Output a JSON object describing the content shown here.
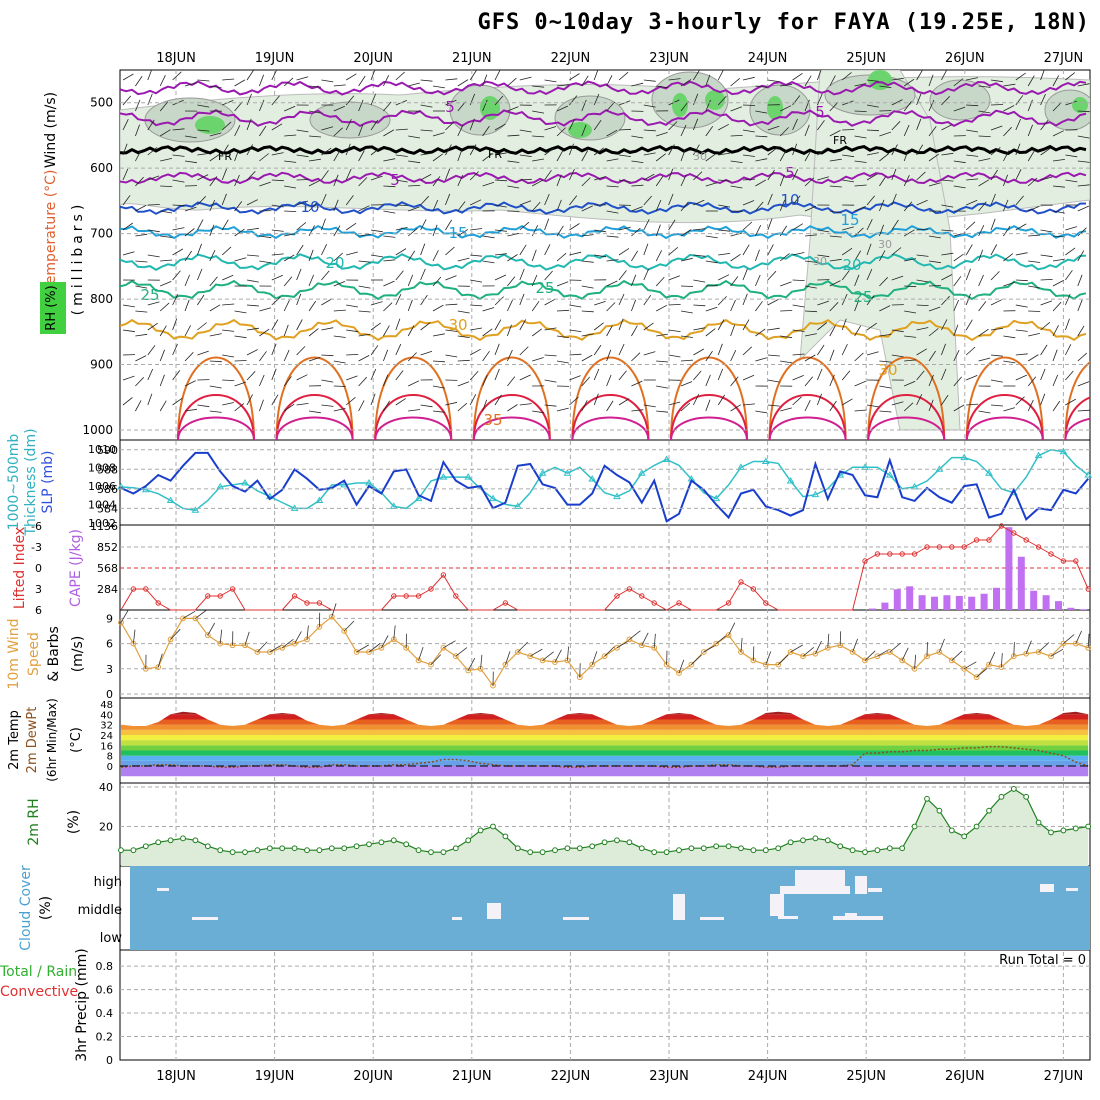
{
  "title": "GFS 0~10day 3-hourly for FAYA (19.25E, 18N)",
  "dates": [
    "18JUN",
    "19JUN",
    "20JUN",
    "21JUN",
    "22JUN",
    "23JUN",
    "24JUN",
    "25JUN",
    "26JUN",
    "27JUN"
  ],
  "colors": {
    "temp_purple": "#9a1ab0",
    "temp_blue": "#2050c8",
    "temp_lightblue": "#20a0d8",
    "temp_teal": "#20b8b0",
    "temp_green": "#20b080",
    "temp_orange": "#e0a020",
    "temp_darkorange": "#e07020",
    "temp_red": "#e02040",
    "slp": "#1a3ecc",
    "thickness": "#30c0c8",
    "li": "#e03030",
    "cape": "#c070f0",
    "wind": "#e0a040",
    "rh": "#208020",
    "cloud_bg": "#6aaed6"
  },
  "panels": {
    "upper": {
      "labels": [
        "Wind (m/s)",
        "Temperature (°C)",
        "RH (%)",
        "(millibars)"
      ],
      "yticks": [
        "500",
        "600",
        "700",
        "800",
        "900",
        "1000"
      ],
      "contour_labels": [
        "5",
        "5",
        "5",
        "5",
        "10",
        "10",
        "15",
        "15",
        "20",
        "20",
        "25",
        "25",
        "25",
        "30",
        "30",
        "35",
        "FR",
        "FR",
        "FR",
        "30",
        "30",
        "30"
      ]
    },
    "slp": {
      "labels": [
        "1000~500mb",
        "Thickness (dm)",
        "SLP (mb)"
      ],
      "left_ticks": [
        "590",
        "588",
        "586",
        "584"
      ],
      "right_ticks": [
        "1010",
        "1008",
        "1006",
        "1004",
        "1002"
      ]
    },
    "cape": {
      "labels": [
        "Lifted Index",
        "CAPE (J/kg)"
      ],
      "left_ticks": [
        "-6",
        "-3",
        "0",
        "3",
        "6"
      ],
      "right_ticks": [
        "1136",
        "852",
        "568",
        "284"
      ]
    },
    "wind": {
      "labels": [
        "10m Wind",
        "Speed",
        "& Barbs",
        "(m/s)"
      ],
      "yticks": [
        "9",
        "6",
        "3",
        "0"
      ]
    },
    "temp2m": {
      "labels": [
        "2m Temp",
        "2m DewPt",
        "(6hr Min/Max)",
        "(°C)"
      ],
      "yticks": [
        "48",
        "40",
        "32",
        "24",
        "16",
        "8",
        "0"
      ]
    },
    "rh2m": {
      "labels": [
        "2m RH",
        "(%)"
      ],
      "yticks": [
        "40",
        "20"
      ]
    },
    "cloud": {
      "labels": [
        "Cloud Cover",
        "(%)"
      ],
      "levels": [
        "high",
        "middle",
        "low"
      ]
    },
    "precip": {
      "labels": [
        "Total / Rain",
        "Convective",
        "3hr Precip (mm)"
      ],
      "yticks": [
        "0.8",
        "0.6",
        "0.4",
        "0.2",
        "0"
      ],
      "run_total": "Run Total = 0"
    }
  },
  "chart_data": [
    {
      "type": "line",
      "title": "SLP (mb) / 1000~500mb Thickness (dm)",
      "x_unit": "3-hourly steps from 17JUN 12Z",
      "series": [
        {
          "name": "SLP (mb)",
          "values": [
            1005.8,
            1005.2,
            1006.0,
            1007.2,
            1006.6,
            1008.2,
            1009.6,
            1009.6,
            1007.6,
            1006.0,
            1005.4,
            1006.6,
            1004.6,
            1005.6,
            1007.8,
            1006.8,
            1005.6,
            1005.8,
            1006.6,
            1004.0,
            1006.0,
            1005.2,
            1007.6,
            1007.8,
            1005.0,
            1004.4,
            1008.6,
            1006.6,
            1005.8,
            1006.0,
            1003.6,
            1004.2,
            1008.2,
            1008.4,
            1006.2,
            1005.8,
            1004.0,
            1004.0,
            1005.2,
            1008.2,
            1007.2,
            1006.4,
            1004.2,
            1006.6,
            1002.2,
            1003.0,
            1006.6,
            1005.6,
            1004.0,
            1002.6,
            1005.2,
            1005.6,
            1003.8,
            1003.4,
            1002.8,
            1003.4,
            1008.4,
            1004.6,
            1007.6,
            1007.2,
            1005.0,
            1004.8,
            1008.8,
            1004.8,
            1004.4,
            1005.8,
            1004.8,
            1004.2,
            1006.0,
            1006.2,
            1002.6,
            1003.0,
            1005.6,
            1002.4,
            1003.6,
            1003.4,
            1005.6,
            1005.2,
            1006.8
          ]
        },
        {
          "name": "1000~500mb Thickness (dm)",
          "values": [
            586.2,
            586.1,
            585.9,
            585.5,
            584.8,
            584.0,
            583.8,
            584.8,
            586.2,
            586.4,
            586.6,
            585.8,
            585.2,
            584.6,
            584.0,
            584.0,
            584.8,
            586.4,
            586.4,
            586.6,
            586.6,
            585.6,
            584.2,
            584.0,
            585.0,
            586.8,
            587.2,
            587.2,
            587.2,
            586.0,
            585.0,
            584.4,
            584.2,
            585.6,
            587.6,
            588.2,
            587.6,
            588.2,
            587.0,
            585.6,
            585.2,
            585.8,
            587.6,
            588.4,
            589.0,
            588.4,
            587.0,
            585.6,
            585.0,
            586.4,
            588.2,
            588.8,
            588.8,
            588.6,
            586.8,
            585.2,
            585.4,
            586.0,
            587.4,
            588.2,
            588.2,
            588.2,
            587.4,
            586.0,
            586.2,
            586.8,
            588.0,
            589.2,
            589.2,
            588.8,
            587.6,
            586.0,
            585.6,
            587.2,
            589.4,
            590.0,
            589.8,
            588.4,
            587.4
          ]
        }
      ]
    },
    {
      "type": "bar",
      "title": "CAPE (J/kg) / Lifted Index",
      "series": [
        {
          "name": "CAPE (J/kg)",
          "values": [
            0,
            0,
            0,
            0,
            0,
            0,
            0,
            0,
            0,
            0,
            0,
            0,
            0,
            0,
            0,
            0,
            0,
            0,
            0,
            0,
            0,
            0,
            0,
            0,
            0,
            0,
            0,
            0,
            0,
            0,
            0,
            0,
            0,
            0,
            0,
            0,
            0,
            0,
            0,
            0,
            0,
            0,
            0,
            0,
            0,
            0,
            0,
            0,
            0,
            0,
            0,
            0,
            0,
            0,
            0,
            0,
            0,
            0,
            0,
            0,
            20,
            100,
            280,
            320,
            200,
            180,
            200,
            190,
            180,
            220,
            300,
            1120,
            720,
            260,
            200,
            120,
            30,
            10,
            0
          ]
        },
        {
          "name": "Lifted Index",
          "values": [
            6,
            3,
            3,
            5,
            6,
            6,
            6,
            4,
            4,
            3,
            6,
            6,
            6,
            6,
            4,
            5,
            5,
            6,
            6,
            6,
            6,
            6,
            4,
            4,
            4,
            3,
            1,
            4,
            6,
            6,
            6,
            5,
            6,
            6,
            6,
            6,
            6,
            6,
            6,
            6,
            4,
            3,
            4,
            5,
            6,
            5,
            6,
            6,
            6,
            5,
            2,
            3,
            5,
            6,
            6,
            6,
            6,
            6,
            6,
            6,
            -1,
            -2,
            -2,
            -2,
            -2,
            -3,
            -3,
            -3,
            -3,
            -4,
            -4,
            -6,
            -5,
            -4,
            -3,
            -2,
            -1,
            -1,
            3,
            3,
            3,
            4,
            4,
            6,
            6,
            6,
            6
          ]
        }
      ]
    },
    {
      "type": "line",
      "title": "10m Wind Speed & Barbs (m/s)",
      "series": [
        {
          "name": "10m Wind Speed",
          "values": [
            8.5,
            6.0,
            3.0,
            3.2,
            6.5,
            9.0,
            9.0,
            7.0,
            6.0,
            5.8,
            5.8,
            5.0,
            5.0,
            5.5,
            6.0,
            6.5,
            8.0,
            9.2,
            7.5,
            5.0,
            5.0,
            5.5,
            6.5,
            5.5,
            4.0,
            3.5,
            5.5,
            4.5,
            2.8,
            3.0,
            1.0,
            3.5,
            5.0,
            4.5,
            4.0,
            3.8,
            4.0,
            2.0,
            3.5,
            4.5,
            5.5,
            6.5,
            5.8,
            5.5,
            3.5,
            2.5,
            3.5,
            5.0,
            6.0,
            7.0,
            5.0,
            4.0,
            3.5,
            3.5,
            5.0,
            4.5,
            4.8,
            5.5,
            5.8,
            5.0,
            4.0,
            4.5,
            5.0,
            4.0,
            3.0,
            4.5,
            5.0,
            4.0,
            3.0,
            2.0,
            3.5,
            3.2,
            4.5,
            4.8,
            5.0,
            4.5,
            6.0,
            6.0,
            5.5,
            3.5,
            4.5,
            6.0,
            7.0,
            9.0,
            9.5
          ]
        }
      ]
    },
    {
      "type": "area",
      "title": "2m Temp / 2m DewPt (°C)",
      "series": [
        {
          "name": "2m Temp",
          "values": [
            32,
            31,
            31,
            34,
            40,
            42,
            41,
            36,
            32,
            31,
            32,
            36,
            40,
            41,
            40,
            35,
            32,
            31,
            32,
            36,
            40,
            41,
            40,
            36,
            32,
            31,
            32,
            36,
            40,
            41,
            40,
            36,
            32,
            31,
            32,
            36,
            40,
            41,
            40,
            36,
            32,
            31,
            32,
            36,
            40,
            41,
            40,
            36,
            32,
            31,
            32,
            36,
            41,
            42,
            41,
            36,
            32,
            31,
            32,
            36,
            40,
            41,
            40,
            36,
            32,
            31,
            32,
            36,
            40,
            41,
            40,
            36,
            32,
            31,
            32,
            36,
            41,
            42,
            40,
            35,
            32
          ]
        },
        {
          "name": "2m DewPt",
          "values": [
            -1,
            0,
            0,
            1,
            1,
            0,
            0,
            0,
            -1,
            -1,
            0,
            0,
            1,
            1,
            0,
            -1,
            -1,
            1,
            1,
            0,
            0,
            0,
            1,
            1,
            2,
            3,
            5,
            5,
            4,
            2,
            1,
            0,
            0,
            0,
            0,
            0,
            -1,
            -1,
            0,
            0,
            0,
            0,
            0,
            0,
            -1,
            -1,
            0,
            0,
            1,
            1,
            0,
            0,
            -1,
            -1,
            0,
            0,
            0,
            0,
            0,
            1,
            10,
            10,
            11,
            11,
            12,
            12,
            13,
            13,
            14,
            14,
            15,
            15,
            14,
            13,
            12,
            10,
            8,
            3,
            0,
            0,
            0,
            0,
            -1,
            -1,
            -2,
            -2,
            0
          ]
        }
      ]
    },
    {
      "type": "line",
      "title": "2m RH (%)",
      "series": [
        {
          "name": "2m RH",
          "values": [
            8,
            8,
            10,
            12,
            13,
            14,
            13,
            10,
            8,
            7,
            7,
            8,
            9,
            9,
            9,
            8,
            8,
            9,
            9,
            10,
            11,
            12,
            13,
            11,
            8,
            7,
            7,
            9,
            13,
            18,
            20,
            15,
            9,
            7,
            7,
            8,
            9,
            9,
            10,
            12,
            13,
            12,
            9,
            7,
            7,
            8,
            9,
            9,
            10,
            10,
            9,
            8,
            8,
            9,
            12,
            13,
            14,
            13,
            10,
            8,
            7,
            8,
            9,
            9,
            20,
            34,
            28,
            18,
            15,
            20,
            28,
            35,
            39,
            35,
            22,
            17,
            18,
            19,
            20,
            20,
            12,
            7,
            6,
            7,
            9,
            10,
            10,
            9
          ]
        }
      ]
    },
    {
      "type": "table",
      "title": "Cloud Cover (%)",
      "levels": [
        "high",
        "middle",
        "low"
      ]
    },
    {
      "type": "bar",
      "title": "3hr Precip (mm)",
      "ylim": [
        0,
        0.9
      ],
      "series": [
        {
          "name": "Total / Rain",
          "values": []
        },
        {
          "name": "Convective",
          "values": []
        }
      ]
    }
  ]
}
